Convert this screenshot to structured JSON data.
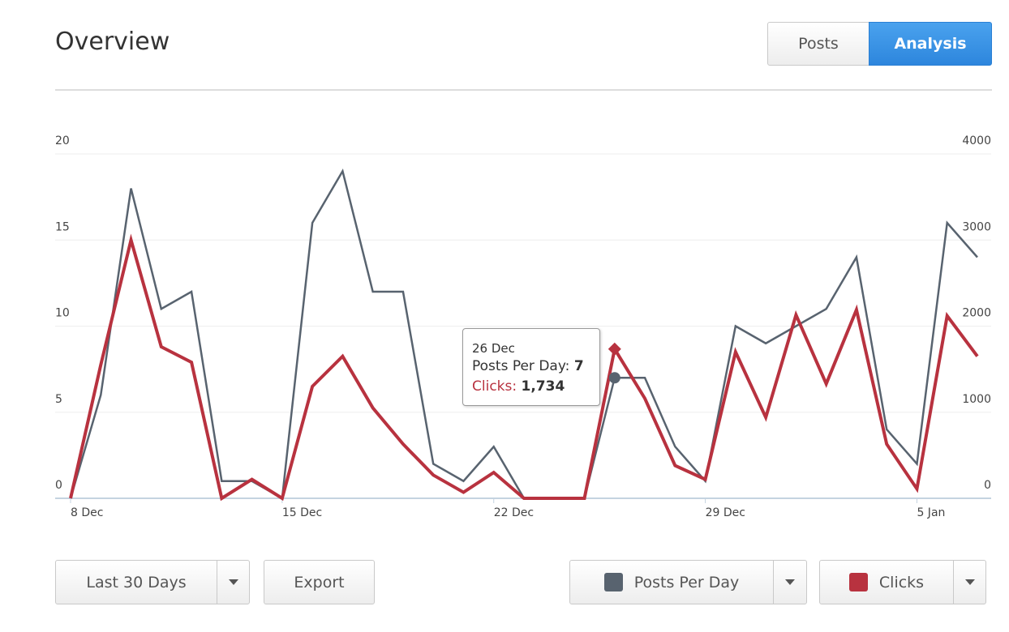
{
  "header": {
    "title": "Overview",
    "tabs": [
      "Posts",
      "Analysis"
    ]
  },
  "controls": {
    "range": "Last 30 Days",
    "export": "Export"
  },
  "chart_data": {
    "type": "line",
    "categories": [
      "8 Dec",
      null,
      null,
      null,
      null,
      null,
      null,
      "15 Dec",
      null,
      null,
      null,
      null,
      null,
      null,
      "22 Dec",
      null,
      null,
      null,
      null,
      null,
      null,
      "29 Dec",
      null,
      null,
      null,
      null,
      null,
      null,
      "5 Jan",
      null,
      null
    ],
    "series": [
      {
        "name": "Posts Per Day",
        "color": "#58636f",
        "values": [
          0,
          6,
          18,
          11,
          12,
          1,
          1,
          0,
          16,
          19,
          12,
          12,
          2,
          1,
          3,
          0,
          0,
          0,
          7,
          7,
          3,
          1,
          10,
          9,
          10,
          11,
          14,
          4,
          2,
          16,
          14
        ]
      },
      {
        "name": "Clicks",
        "color": "#b8323f",
        "axis": "y2",
        "values": [
          0,
          1550,
          3000,
          1760,
          1580,
          0,
          220,
          0,
          1300,
          1650,
          1050,
          630,
          270,
          70,
          300,
          0,
          0,
          0,
          1734,
          1160,
          380,
          220,
          1700,
          940,
          2130,
          1330,
          2190,
          630,
          110,
          2120,
          1650
        ],
        "value_labels": [
          null,
          null,
          null,
          null,
          null,
          null,
          null,
          null,
          null,
          null,
          null,
          null,
          null,
          null,
          null,
          null,
          null,
          null,
          "1,734",
          null,
          null,
          null,
          null,
          null,
          null,
          null,
          null,
          null,
          null,
          null,
          null
        ]
      }
    ],
    "ylim": [
      0,
      20
    ],
    "yticks": [
      0,
      5,
      10,
      15,
      20
    ],
    "y2lim": [
      0,
      4000
    ],
    "y2ticks": [
      0,
      1000,
      2000,
      3000,
      4000
    ],
    "grid": true,
    "tooltip": {
      "title": "26 Dec"
    }
  }
}
